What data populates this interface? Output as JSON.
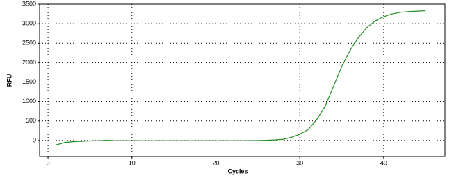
{
  "chart_data": {
    "type": "line",
    "xlabel": "Cycles",
    "ylabel": "RFU",
    "x": [
      1,
      2,
      3,
      4,
      5,
      6,
      7,
      8,
      9,
      10,
      11,
      12,
      13,
      14,
      15,
      16,
      17,
      18,
      19,
      20,
      21,
      22,
      23,
      24,
      25,
      26,
      27,
      28,
      29,
      30,
      31,
      32,
      33,
      34,
      35,
      36,
      37,
      38,
      39,
      40,
      41,
      42,
      43,
      44,
      45
    ],
    "series": [
      {
        "color": "#1e8c1e",
        "values": [
          -110,
          -50,
          -30,
          -20,
          -10,
          -5,
          5,
          -5,
          -5,
          -5,
          -5,
          -8,
          -5,
          -5,
          -5,
          -5,
          -5,
          -5,
          -5,
          -5,
          -5,
          -5,
          -5,
          -3,
          0,
          5,
          15,
          30,
          80,
          160,
          280,
          530,
          870,
          1380,
          1900,
          2320,
          2650,
          2900,
          3070,
          3180,
          3250,
          3290,
          3310,
          3320,
          3330
        ]
      }
    ],
    "xlim": [
      -1,
      47.3
    ],
    "xticks": [
      0,
      10,
      20,
      30,
      40
    ],
    "ylim": [
      -410,
      3500
    ],
    "yticks": [
      0,
      500,
      1000,
      1500,
      2000,
      2500,
      3000,
      3500
    ],
    "grid": true
  }
}
